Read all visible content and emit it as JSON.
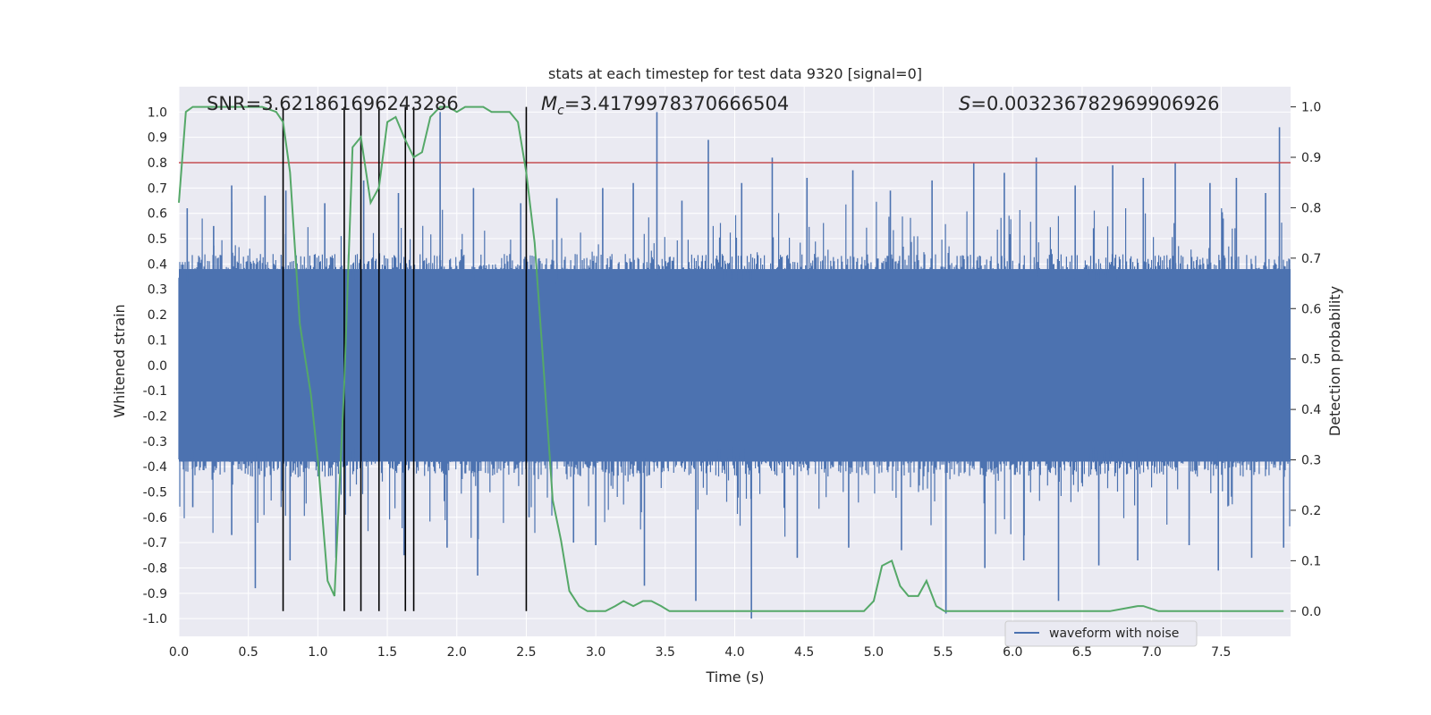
{
  "chart_data": {
    "type": "line",
    "title": "stats at each timestep for test data 9320 [signal=0]",
    "xlabel": "Time (s)",
    "ylabel_left": "Whitened strain",
    "ylabel_right": "Detection probability",
    "xlim": [
      0,
      8.0
    ],
    "ylim_left": [
      -1.07,
      1.1
    ],
    "ylim_right": [
      -0.05,
      1.04
    ],
    "x_ticks": [
      "0.0",
      "0.5",
      "1.0",
      "1.5",
      "2.0",
      "2.5",
      "3.0",
      "3.5",
      "4.0",
      "4.5",
      "5.0",
      "5.5",
      "6.0",
      "6.5",
      "7.0",
      "7.5"
    ],
    "y_left_ticks": [
      "1.0",
      "0.9",
      "0.8",
      "0.7",
      "0.6",
      "0.5",
      "0.4",
      "0.3",
      "0.2",
      "0.1",
      "0.0",
      "-0.1",
      "-0.2",
      "-0.3",
      "-0.4",
      "-0.5",
      "-0.6",
      "-0.7",
      "-0.8",
      "-0.9",
      "-1.0"
    ],
    "y_right_ticks": [
      "1.0",
      "0.9",
      "0.8",
      "0.7",
      "0.6",
      "0.5",
      "0.4",
      "0.3",
      "0.2",
      "0.1",
      "0.0"
    ],
    "annotations": {
      "snr": "SNR=3.621861696243286",
      "mc_symbol": "M",
      "mc_sub": "c",
      "mc_value": "=3.4179978370666504",
      "s_symbol": "S",
      "s_value": "=0.003236782969906926"
    },
    "legend": {
      "label": "waveform with noise",
      "position": "lower center"
    },
    "threshold_line": {
      "axis": "left",
      "y": 0.8,
      "color": "#c44e52"
    },
    "vertical_lines": [
      0.75,
      1.19,
      1.31,
      1.44,
      1.63,
      1.69,
      2.5
    ],
    "vertical_line_range_right": [
      0.0,
      1.0
    ],
    "series": [
      {
        "name": "waveform with noise",
        "axis": "left",
        "color": "#4c72b0",
        "description_envelope": "dense noisy strain samples, bulk within ±0.4, spikes up to ±1.0",
        "spikes_up": [
          [
            0.06,
            0.62
          ],
          [
            0.25,
            0.55
          ],
          [
            0.38,
            0.71
          ],
          [
            0.62,
            0.67
          ],
          [
            0.77,
            0.69
          ],
          [
            1.05,
            0.64
          ],
          [
            1.33,
            0.73
          ],
          [
            1.58,
            0.68
          ],
          [
            1.88,
            1.0
          ],
          [
            2.12,
            0.7
          ],
          [
            2.46,
            0.64
          ],
          [
            2.72,
            0.66
          ],
          [
            3.05,
            0.7
          ],
          [
            3.27,
            0.72
          ],
          [
            3.44,
            1.0
          ],
          [
            3.62,
            0.65
          ],
          [
            3.81,
            0.89
          ],
          [
            4.05,
            0.72
          ],
          [
            4.27,
            0.82
          ],
          [
            4.52,
            0.74
          ],
          [
            4.85,
            0.77
          ],
          [
            5.12,
            0.69
          ],
          [
            5.42,
            0.73
          ],
          [
            5.72,
            0.8
          ],
          [
            5.94,
            0.76
          ],
          [
            6.17,
            0.82
          ],
          [
            6.45,
            0.71
          ],
          [
            6.72,
            0.79
          ],
          [
            6.94,
            0.74
          ],
          [
            7.17,
            0.8
          ],
          [
            7.42,
            0.72
          ],
          [
            7.61,
            0.74
          ],
          [
            7.82,
            0.68
          ],
          [
            7.92,
            0.94
          ]
        ],
        "spikes_down": [
          [
            0.1,
            -0.56
          ],
          [
            0.38,
            -0.67
          ],
          [
            0.55,
            -0.88
          ],
          [
            0.8,
            -0.77
          ],
          [
            1.13,
            -0.76
          ],
          [
            1.62,
            -0.75
          ],
          [
            1.93,
            -0.72
          ],
          [
            2.15,
            -0.83
          ],
          [
            2.52,
            -0.6
          ],
          [
            2.84,
            -0.7
          ],
          [
            3.0,
            -0.71
          ],
          [
            3.35,
            -0.87
          ],
          [
            3.72,
            -0.93
          ],
          [
            4.12,
            -1.0
          ],
          [
            4.45,
            -0.76
          ],
          [
            4.82,
            -0.72
          ],
          [
            5.2,
            -0.73
          ],
          [
            5.52,
            -0.98
          ],
          [
            5.8,
            -0.8
          ],
          [
            6.08,
            -0.77
          ],
          [
            6.33,
            -0.93
          ],
          [
            6.62,
            -0.79
          ],
          [
            6.9,
            -0.77
          ],
          [
            7.27,
            -0.71
          ],
          [
            7.48,
            -0.81
          ],
          [
            7.72,
            -0.76
          ],
          [
            7.95,
            -0.72
          ]
        ]
      },
      {
        "name": "",
        "axis": "right",
        "color": "#55a868",
        "x": [
          0.0,
          0.05,
          0.1,
          0.2,
          0.3,
          0.4,
          0.5,
          0.6,
          0.7,
          0.75,
          0.8,
          0.87,
          0.95,
          1.0,
          1.07,
          1.12,
          1.19,
          1.25,
          1.31,
          1.38,
          1.44,
          1.5,
          1.56,
          1.62,
          1.69,
          1.75,
          1.81,
          1.88,
          1.94,
          2.0,
          2.06,
          2.12,
          2.19,
          2.25,
          2.31,
          2.38,
          2.44,
          2.5,
          2.56,
          2.62,
          2.69,
          2.75,
          2.81,
          2.88,
          2.94,
          3.0,
          3.07,
          3.14,
          3.2,
          3.27,
          3.34,
          3.4,
          3.47,
          3.53,
          3.6,
          3.7,
          3.8,
          3.9,
          4.0,
          4.2,
          4.4,
          4.6,
          4.8,
          4.93,
          5.0,
          5.06,
          5.13,
          5.19,
          5.25,
          5.32,
          5.38,
          5.45,
          5.51,
          5.6,
          5.8,
          6.0,
          6.3,
          6.5,
          6.7,
          6.9,
          6.94,
          7.05,
          7.3,
          7.6,
          7.95
        ],
        "y": [
          0.81,
          0.99,
          1.0,
          1.0,
          1.0,
          1.0,
          1.0,
          1.0,
          0.99,
          0.97,
          0.87,
          0.57,
          0.43,
          0.3,
          0.06,
          0.03,
          0.45,
          0.92,
          0.94,
          0.81,
          0.84,
          0.97,
          0.98,
          0.94,
          0.9,
          0.91,
          0.98,
          1.0,
          1.0,
          0.99,
          1.0,
          1.0,
          1.0,
          0.99,
          0.99,
          0.99,
          0.97,
          0.87,
          0.73,
          0.5,
          0.22,
          0.14,
          0.04,
          0.01,
          0.0,
          0.0,
          0.0,
          0.01,
          0.02,
          0.01,
          0.02,
          0.02,
          0.01,
          0.0,
          0.0,
          0.0,
          0.0,
          0.0,
          0.0,
          0.0,
          0.0,
          0.0,
          0.0,
          0.0,
          0.02,
          0.09,
          0.1,
          0.05,
          0.03,
          0.03,
          0.06,
          0.01,
          0.0,
          0.0,
          0.0,
          0.0,
          0.0,
          0.0,
          0.0,
          0.01,
          0.01,
          0.0,
          0.0,
          0.0,
          0.0
        ]
      }
    ]
  }
}
